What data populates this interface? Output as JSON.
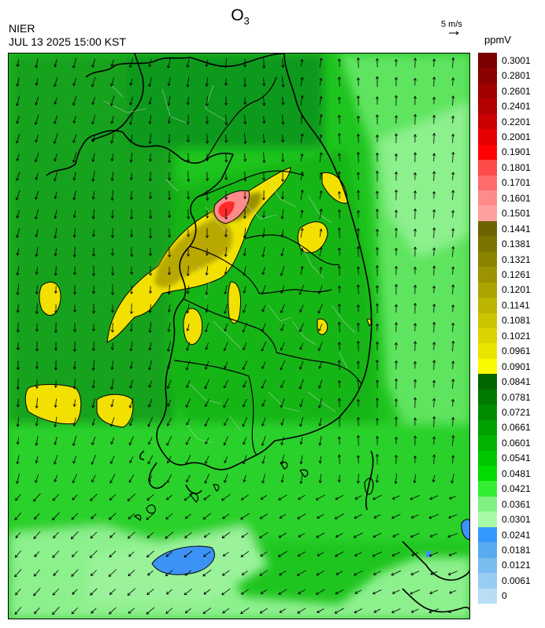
{
  "header": {
    "org": "NIER",
    "timestamp": "JUL 13 2025 15:00 KST",
    "title": "O",
    "title_sub": "3",
    "wind_ref_label": "5 m/s",
    "unit": "ppmV"
  },
  "legend": {
    "labels": [
      "0.3001",
      "0.2801",
      "0.2601",
      "0.2401",
      "0.2201",
      "0.2001",
      "0.1901",
      "0.1801",
      "0.1701",
      "0.1601",
      "0.1501",
      "0.1441",
      "0.1381",
      "0.1321",
      "0.1261",
      "0.1201",
      "0.1141",
      "0.1081",
      "0.1021",
      "0.0961",
      "0.0901",
      "0.0841",
      "0.0781",
      "0.0721",
      "0.0661",
      "0.0601",
      "0.0541",
      "0.0481",
      "0.0421",
      "0.0361",
      "0.0301",
      "0.0241",
      "0.0181",
      "0.0121",
      "0.0061",
      "0"
    ],
    "colors": [
      "#7a0000",
      "#8b0000",
      "#a00000",
      "#b40000",
      "#cc0000",
      "#e60000",
      "#ff0000",
      "#ff4a4a",
      "#ff6b6b",
      "#ff8a8a",
      "#ffa0a0",
      "#6b6400",
      "#7b7400",
      "#8b8400",
      "#9b9400",
      "#aba400",
      "#bbb400",
      "#cbc400",
      "#dbd400",
      "#ebe400",
      "#fafa00",
      "#006600",
      "#007a00",
      "#008c00",
      "#00a000",
      "#00b400",
      "#00c800",
      "#00dc00",
      "#33ee33",
      "#80f080",
      "#a8f8a8",
      "#3399ff",
      "#5aaaf0",
      "#78bcf0",
      "#98ccf0",
      "#b8ddf5"
    ]
  },
  "map": {
    "background_colors": {
      "sea_green": "#22c922",
      "land_green": "#18b018",
      "dark_green": "#0d8c20",
      "light_green": "#86f086",
      "yellow": "#f2e100",
      "olive": "#9a9000",
      "pink": "#ff8888",
      "red": "#ff2a2a",
      "blue": "#3d93f5"
    },
    "wind_field": "southwest-southeast flow; mostly southward arrows over sea, northward arrows over eastern coast"
  }
}
